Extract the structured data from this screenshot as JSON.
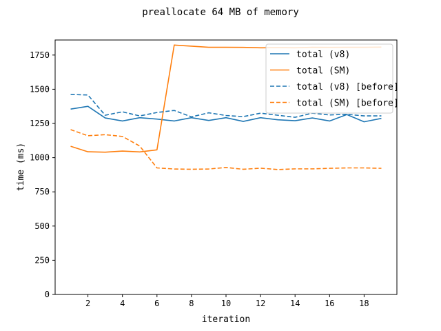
{
  "chart_data": {
    "type": "line",
    "title": "preallocate 64 MB of memory",
    "xlabel": "iteration",
    "ylabel": "time (ms)",
    "xlim": [
      0.1,
      19.9
    ],
    "ylim": [
      0,
      1860
    ],
    "xticks": [
      2,
      4,
      6,
      8,
      10,
      12,
      14,
      16,
      18
    ],
    "yticks": [
      0,
      250,
      500,
      750,
      1000,
      1250,
      1500,
      1750
    ],
    "grid": false,
    "legend_position": "top-right",
    "x": [
      1,
      2,
      3,
      4,
      5,
      6,
      7,
      8,
      9,
      10,
      11,
      12,
      13,
      14,
      15,
      16,
      17,
      18,
      19
    ],
    "series": [
      {
        "name": "total (v8)",
        "color": "#1f77b4",
        "dash": "solid",
        "values": [
          1355,
          1375,
          1290,
          1268,
          1292,
          1282,
          1268,
          1292,
          1272,
          1292,
          1265,
          1292,
          1277,
          1270,
          1290,
          1268,
          1315,
          1262,
          1287
        ]
      },
      {
        "name": "total (SM)",
        "color": "#ff7f0e",
        "dash": "solid",
        "values": [
          1083,
          1043,
          1040,
          1048,
          1042,
          1057,
          1823,
          1815,
          1807,
          1807,
          1806,
          1803,
          1804,
          1803,
          1807,
          1806,
          1807,
          1807,
          1808
        ]
      },
      {
        "name": "total (v8) [before]",
        "color": "#1f77b4",
        "dash": "dashed",
        "values": [
          1462,
          1458,
          1310,
          1335,
          1305,
          1330,
          1345,
          1298,
          1328,
          1308,
          1300,
          1325,
          1310,
          1295,
          1325,
          1312,
          1317,
          1305,
          1305
        ]
      },
      {
        "name": "total (SM) [before]",
        "color": "#ff7f0e",
        "dash": "dashed",
        "values": [
          1205,
          1160,
          1168,
          1155,
          1085,
          925,
          917,
          915,
          917,
          928,
          915,
          923,
          913,
          918,
          918,
          922,
          925,
          925,
          922
        ]
      }
    ]
  }
}
